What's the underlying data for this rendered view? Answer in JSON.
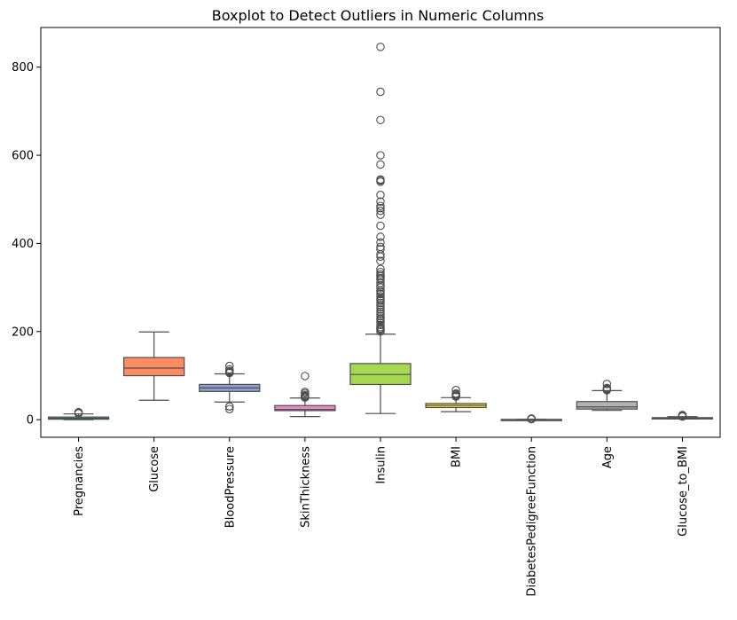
{
  "chart_data": {
    "type": "box",
    "title": "Boxplot to Detect Outliers in Numeric Columns",
    "xlabel": "",
    "ylabel": "",
    "ylim": [
      -40,
      890
    ],
    "yticks": [
      0,
      200,
      400,
      600,
      800
    ],
    "yticklabels": [
      "0",
      "200",
      "400",
      "600",
      "800"
    ],
    "grid": false,
    "categories": [
      "Pregnancies",
      "Glucose",
      "BloodPressure",
      "SkinThickness",
      "Insulin",
      "BMI",
      "DiabetesPedigreeFunction",
      "Age",
      "Glucose_to_BMI"
    ],
    "boxes": [
      {
        "name": "Pregnancies",
        "color": "#66c2a5",
        "whislo": 0,
        "q1": 1,
        "med": 3,
        "q3": 6,
        "whishi": 13,
        "fliers": [
          14,
          15,
          17
        ]
      },
      {
        "name": "Glucose",
        "color": "#fc8d62",
        "whislo": 44,
        "q1": 99.75,
        "med": 117,
        "q3": 141,
        "whishi": 199,
        "fliers": []
      },
      {
        "name": "BloodPressure",
        "color": "#8da0cb",
        "whislo": 40,
        "q1": 64,
        "med": 72,
        "q3": 80,
        "whishi": 104,
        "fliers": [
          24,
          30,
          30,
          106,
          108,
          110,
          110,
          114,
          122
        ]
      },
      {
        "name": "SkinThickness",
        "color": "#e78ac3",
        "whislo": 7,
        "q1": 20.5,
        "med": 23,
        "q3": 32,
        "whishi": 49,
        "fliers": [
          50,
          51,
          52,
          54,
          56,
          60,
          63,
          99
        ]
      },
      {
        "name": "Insulin",
        "color": "#a6d854",
        "whislo": 14,
        "q1": 79.8,
        "med": 102.5,
        "q3": 127.3,
        "whishi": 194,
        "fliers": [
          200,
          204,
          205,
          207,
          210,
          215,
          220,
          225,
          228,
          230,
          235,
          240,
          245,
          250,
          255,
          260,
          265,
          270,
          272,
          275,
          280,
          285,
          290,
          293,
          300,
          304,
          310,
          318,
          321,
          325,
          326,
          330,
          335,
          342,
          360,
          370,
          375,
          387,
          392,
          402,
          415,
          440,
          465,
          474,
          480,
          485,
          495,
          510,
          540,
          543,
          545,
          579,
          600,
          680,
          744,
          846
        ]
      },
      {
        "name": "BMI",
        "color": "#ffd92f",
        "whislo": 18.2,
        "q1": 27.5,
        "med": 32.3,
        "q3": 36.6,
        "whishi": 50,
        "fliers": [
          52.3,
          53.2,
          55,
          57.3,
          59.4,
          67.1
        ]
      },
      {
        "name": "DiabetesPedigreeFunction",
        "color": "#e5c494",
        "whislo": 0.078,
        "q1": 0.244,
        "med": 0.373,
        "q3": 0.627,
        "whishi": 1.19,
        "fliers": [
          1.22,
          1.39,
          1.6,
          1.89,
          2.14,
          2.42
        ]
      },
      {
        "name": "Age",
        "color": "#b3b3b3",
        "whislo": 21,
        "q1": 24,
        "med": 29,
        "q3": 41,
        "whishi": 66,
        "fliers": [
          67,
          68,
          69,
          70,
          72,
          81
        ]
      },
      {
        "name": "Glucose_to_BMI",
        "color": "#66c2a5",
        "whislo": 1.5,
        "q1": 3.1,
        "med": 3.7,
        "q3": 4.6,
        "whishi": 6.8,
        "fliers": [
          7,
          7.5,
          8,
          8.6,
          9.5,
          10.5
        ]
      }
    ]
  }
}
